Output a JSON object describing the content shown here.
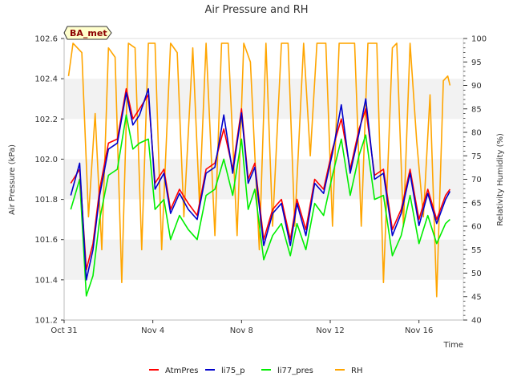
{
  "chart_data": {
    "type": "line",
    "title": "Air Pressure and RH",
    "badge": "BA_met",
    "xlabel": "Time",
    "ylabel": "Air Pressure (kPa)",
    "y2label": "Relativity Humidity (%)",
    "x_ticks": [
      "Oct 31",
      "Nov 4",
      "Nov 8",
      "Nov 12",
      "Nov 16"
    ],
    "x_tick_days": [
      0,
      4,
      8,
      12,
      16
    ],
    "xlim_days": [
      0,
      18
    ],
    "ylim": [
      101.2,
      102.6
    ],
    "y_ticks": [
      "101.2",
      "101.4",
      "101.6",
      "101.8",
      "102.0",
      "102.2",
      "102.4",
      "102.6"
    ],
    "y2lim": [
      40,
      100
    ],
    "y2_ticks": [
      "40",
      "45",
      "50",
      "55",
      "60",
      "65",
      "70",
      "75",
      "80",
      "85",
      "90",
      "95",
      "100"
    ],
    "grid_bands": true,
    "legend_position": "bottom",
    "series": [
      {
        "name": "AtmPres",
        "axis": "left",
        "color": "#ff0000",
        "x": [
          0.3,
          0.7,
          1.0,
          1.3,
          1.6,
          2.0,
          2.4,
          2.8,
          3.1,
          3.4,
          3.8,
          4.1,
          4.5,
          4.8,
          5.2,
          5.6,
          6.0,
          6.4,
          6.8,
          7.2,
          7.6,
          8.0,
          8.3,
          8.6,
          9.0,
          9.4,
          9.8,
          10.2,
          10.5,
          10.9,
          11.3,
          11.7,
          12.1,
          12.5,
          12.9,
          13.3,
          13.6,
          14.0,
          14.4,
          14.8,
          15.2,
          15.6,
          16.0,
          16.4,
          16.8,
          17.2,
          17.4
        ],
        "y": [
          101.88,
          101.95,
          101.45,
          101.58,
          101.85,
          102.08,
          102.1,
          102.35,
          102.2,
          102.25,
          102.32,
          101.88,
          101.95,
          101.75,
          101.85,
          101.78,
          101.72,
          101.95,
          101.98,
          102.15,
          101.95,
          102.25,
          101.9,
          101.98,
          101.6,
          101.75,
          101.8,
          101.6,
          101.8,
          101.65,
          101.9,
          101.85,
          102.05,
          102.2,
          101.95,
          102.15,
          102.25,
          101.92,
          101.95,
          101.65,
          101.75,
          101.95,
          101.7,
          101.85,
          101.7,
          101.82,
          101.85
        ]
      },
      {
        "name": "li75_p",
        "axis": "left",
        "color": "#0000cc",
        "x": [
          0.3,
          0.7,
          1.0,
          1.3,
          1.6,
          2.0,
          2.4,
          2.8,
          3.1,
          3.4,
          3.8,
          4.1,
          4.5,
          4.8,
          5.2,
          5.6,
          6.0,
          6.4,
          6.8,
          7.2,
          7.6,
          8.0,
          8.3,
          8.6,
          9.0,
          9.4,
          9.8,
          10.2,
          10.5,
          10.9,
          11.3,
          11.7,
          12.1,
          12.5,
          12.9,
          13.3,
          13.6,
          14.0,
          14.4,
          14.8,
          15.2,
          15.6,
          16.0,
          16.4,
          16.8,
          17.2,
          17.4
        ],
        "y": [
          101.82,
          101.98,
          101.4,
          101.55,
          101.82,
          102.05,
          102.08,
          102.33,
          102.17,
          102.22,
          102.35,
          101.85,
          101.93,
          101.73,
          101.83,
          101.75,
          101.7,
          101.93,
          101.96,
          102.22,
          101.93,
          102.23,
          101.88,
          101.96,
          101.57,
          101.73,
          101.78,
          101.57,
          101.78,
          101.62,
          101.88,
          101.83,
          102.03,
          102.27,
          101.93,
          102.13,
          102.3,
          101.9,
          101.93,
          101.62,
          101.73,
          101.93,
          101.67,
          101.83,
          101.68,
          101.8,
          101.84
        ]
      },
      {
        "name": "li77_pres",
        "axis": "left",
        "color": "#00ee00",
        "x": [
          0.3,
          0.7,
          1.0,
          1.3,
          1.6,
          2.0,
          2.4,
          2.8,
          3.1,
          3.4,
          3.8,
          4.1,
          4.5,
          4.8,
          5.2,
          5.6,
          6.0,
          6.4,
          6.8,
          7.2,
          7.6,
          8.0,
          8.3,
          8.6,
          9.0,
          9.4,
          9.8,
          10.2,
          10.5,
          10.9,
          11.3,
          11.7,
          12.1,
          12.5,
          12.9,
          13.3,
          13.6,
          14.0,
          14.4,
          14.8,
          15.2,
          15.6,
          16.0,
          16.4,
          16.8,
          17.2,
          17.4
        ],
        "y": [
          101.75,
          101.9,
          101.32,
          101.42,
          101.7,
          101.92,
          101.95,
          102.22,
          102.05,
          102.08,
          102.1,
          101.75,
          101.8,
          101.6,
          101.72,
          101.65,
          101.6,
          101.82,
          101.85,
          102.0,
          101.82,
          102.1,
          101.75,
          101.85,
          101.5,
          101.62,
          101.68,
          101.52,
          101.68,
          101.55,
          101.78,
          101.72,
          101.92,
          102.1,
          101.82,
          102.02,
          102.12,
          101.8,
          101.82,
          101.52,
          101.62,
          101.82,
          101.58,
          101.72,
          101.58,
          101.68,
          101.7
        ]
      },
      {
        "name": "RH",
        "axis": "right",
        "color": "#ffa500",
        "x": [
          0.2,
          0.4,
          0.8,
          1.1,
          1.4,
          1.7,
          2.0,
          2.3,
          2.6,
          2.9,
          3.2,
          3.5,
          3.8,
          4.1,
          4.4,
          4.8,
          5.1,
          5.4,
          5.8,
          6.1,
          6.4,
          6.8,
          7.1,
          7.4,
          7.8,
          8.1,
          8.4,
          8.8,
          9.1,
          9.4,
          9.8,
          10.1,
          10.4,
          10.8,
          11.1,
          11.4,
          11.8,
          12.1,
          12.4,
          12.8,
          13.1,
          13.4,
          13.7,
          14.1,
          14.4,
          14.8,
          15.0,
          15.3,
          15.6,
          15.9,
          16.2,
          16.5,
          16.8,
          17.1,
          17.3,
          17.4
        ],
        "y": [
          92,
          99,
          97,
          62,
          84,
          55,
          98,
          96,
          48,
          99,
          98,
          55,
          99,
          99,
          55,
          99,
          97,
          62,
          98,
          65,
          99,
          58,
          99,
          99,
          58,
          99,
          95,
          55,
          99,
          60,
          99,
          99,
          60,
          99,
          75,
          99,
          99,
          60,
          99,
          99,
          99,
          60,
          99,
          99,
          48,
          98,
          99,
          60,
          99,
          78,
          62,
          88,
          45,
          91,
          92,
          90
        ]
      }
    ]
  },
  "legend": [
    {
      "label": "AtmPres",
      "color": "#ff0000"
    },
    {
      "label": "li75_p",
      "color": "#0000cc"
    },
    {
      "label": "li77_pres",
      "color": "#00ee00"
    },
    {
      "label": "RH",
      "color": "#ffa500"
    }
  ]
}
